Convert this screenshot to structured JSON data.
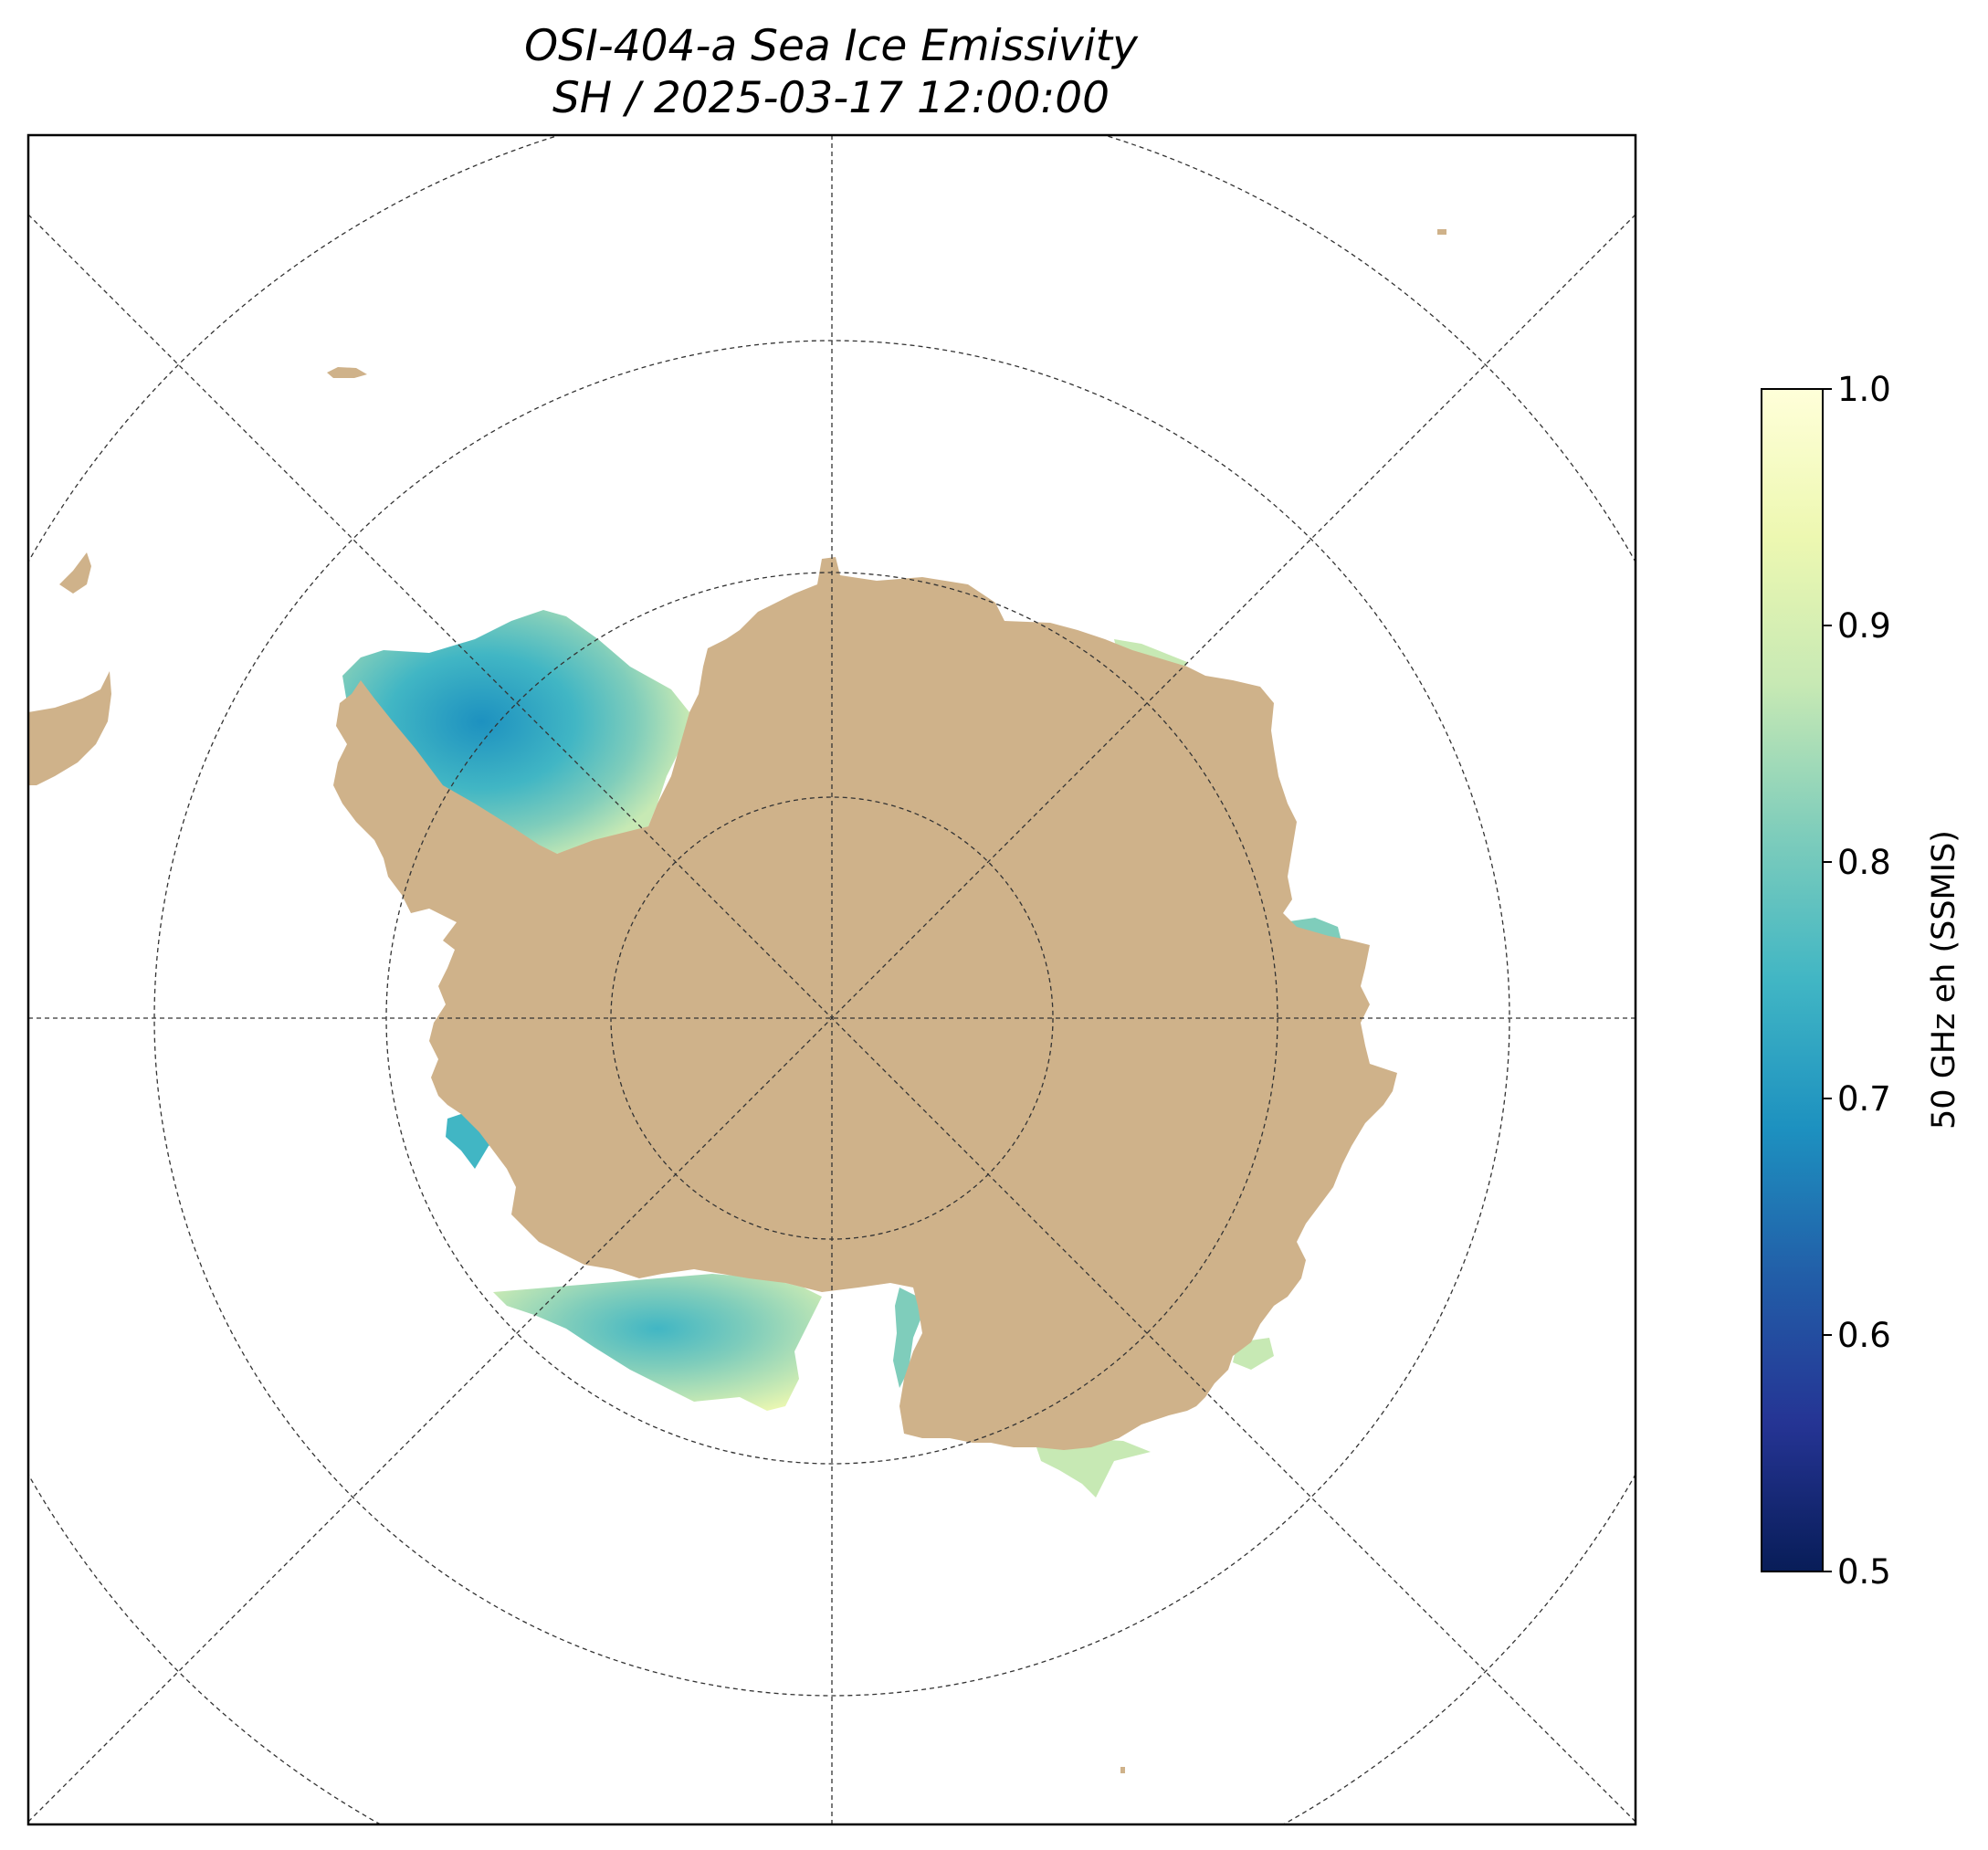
{
  "title": {
    "line1": "OSI-404-a Sea Ice Emissivity",
    "line2": "SH / 2025-03-17 12:00:00"
  },
  "colorbar": {
    "label": "50 GHz eh (SSMIS)",
    "colormap": "YlGnBu_r",
    "range": [
      0.5,
      1.0
    ],
    "ticks": [
      "0.5",
      "0.6",
      "0.7",
      "0.8",
      "0.9",
      "1.0"
    ]
  },
  "map": {
    "projection": "south polar stereographic",
    "land_color": "#cfb28a",
    "ocean_color": "#ffffff",
    "gridlines": "dashed"
  }
}
